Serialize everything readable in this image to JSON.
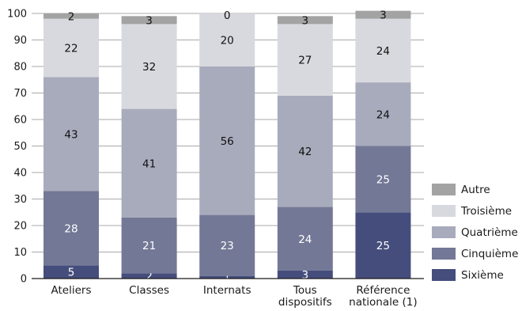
{
  "chart_data": {
    "type": "bar",
    "stacked": true,
    "orientation": "vertical",
    "categories": [
      [
        "Ateliers"
      ],
      [
        "Classes"
      ],
      [
        "Internats"
      ],
      [
        "Tous",
        "dispositifs"
      ],
      [
        "Référence",
        "nationale (1)"
      ]
    ],
    "series": [
      {
        "name": "Sixième",
        "color": "#454d7c",
        "label_color": "#ffffff",
        "values": [
          5,
          2,
          1,
          3,
          25
        ]
      },
      {
        "name": "Cinquième",
        "color": "#737896",
        "label_color": "#ffffff",
        "values": [
          28,
          21,
          23,
          24,
          25
        ]
      },
      {
        "name": "Quatrième",
        "color": "#a8abbc",
        "label_color": "#111111",
        "values": [
          43,
          41,
          56,
          42,
          24
        ]
      },
      {
        "name": "Troisième",
        "color": "#d8d9df",
        "label_color": "#111111",
        "values": [
          22,
          32,
          20,
          27,
          24
        ]
      },
      {
        "name": "Autre",
        "color": "#a3a3a3",
        "label_color": "#111111",
        "values": [
          2,
          3,
          0,
          3,
          3
        ]
      }
    ],
    "ylim": [
      0,
      100
    ],
    "yticks": [
      0,
      10,
      20,
      30,
      40,
      50,
      60,
      70,
      80,
      90,
      100
    ],
    "grid": true,
    "legend_position": "right",
    "legend_order": [
      "Autre",
      "Troisième",
      "Quatrième",
      "Cinquième",
      "Sixième"
    ],
    "xlabel": "",
    "ylabel": ""
  }
}
